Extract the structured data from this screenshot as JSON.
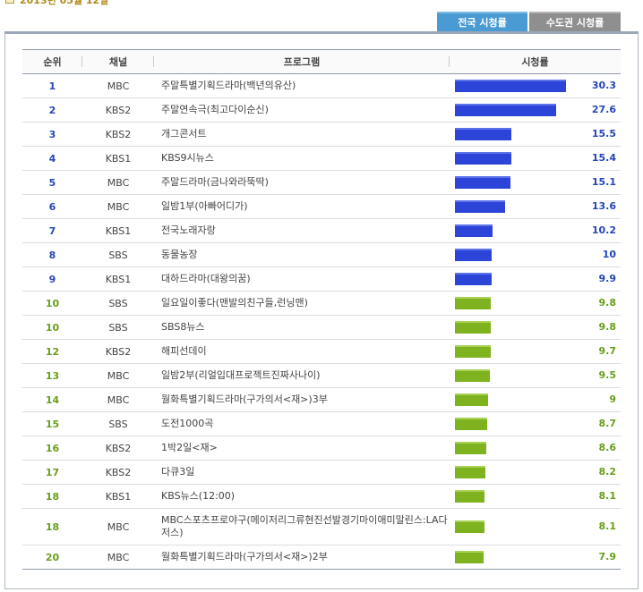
{
  "header": {
    "date": "2013년 05월 12일",
    "tabs": [
      {
        "label": "전국 시청률",
        "active": true
      },
      {
        "label": "수도권 시청률",
        "active": false
      }
    ]
  },
  "table": {
    "columns": [
      "순위",
      "채널",
      "프로그램",
      "시청률"
    ],
    "max_rating": 30.3,
    "rows": [
      {
        "rank": "1",
        "channel": "MBC",
        "program": "주말특별기획드라마(백년의유산)",
        "rating": 30.3,
        "rating_label": "30.3"
      },
      {
        "rank": "2",
        "channel": "KBS2",
        "program": "주말연속극(최고다이순신)",
        "rating": 27.6,
        "rating_label": "27.6"
      },
      {
        "rank": "3",
        "channel": "KBS2",
        "program": "개그콘서트",
        "rating": 15.5,
        "rating_label": "15.5"
      },
      {
        "rank": "4",
        "channel": "KBS1",
        "program": "KBS9시뉴스",
        "rating": 15.4,
        "rating_label": "15.4"
      },
      {
        "rank": "5",
        "channel": "MBC",
        "program": "주말드라마(금나와라뚝딱)",
        "rating": 15.1,
        "rating_label": "15.1"
      },
      {
        "rank": "6",
        "channel": "MBC",
        "program": "일밤1부(아빠어디가)",
        "rating": 13.6,
        "rating_label": "13.6"
      },
      {
        "rank": "7",
        "channel": "KBS1",
        "program": "전국노래자랑",
        "rating": 10.2,
        "rating_label": "10.2"
      },
      {
        "rank": "8",
        "channel": "SBS",
        "program": "동물농장",
        "rating": 10,
        "rating_label": "10"
      },
      {
        "rank": "9",
        "channel": "KBS1",
        "program": "대하드라마(대왕의꿈)",
        "rating": 9.9,
        "rating_label": "9.9"
      },
      {
        "rank": "10",
        "channel": "SBS",
        "program": "일요일이좋다(맨발의친구들,런닝맨)",
        "rating": 9.8,
        "rating_label": "9.8"
      },
      {
        "rank": "10",
        "channel": "SBS",
        "program": "SBS8뉴스",
        "rating": 9.8,
        "rating_label": "9.8"
      },
      {
        "rank": "12",
        "channel": "KBS2",
        "program": "해피선데이",
        "rating": 9.7,
        "rating_label": "9.7"
      },
      {
        "rank": "13",
        "channel": "MBC",
        "program": "일밤2부(리얼입대프로젝트진짜사나이)",
        "rating": 9.5,
        "rating_label": "9.5"
      },
      {
        "rank": "14",
        "channel": "MBC",
        "program": "월화특별기획드라마(구가의서<재>)3부",
        "rating": 9,
        "rating_label": "9"
      },
      {
        "rank": "15",
        "channel": "SBS",
        "program": "도전1000곡",
        "rating": 8.7,
        "rating_label": "8.7"
      },
      {
        "rank": "16",
        "channel": "KBS2",
        "program": "1박2일<재>",
        "rating": 8.6,
        "rating_label": "8.6"
      },
      {
        "rank": "17",
        "channel": "KBS2",
        "program": "다큐3일",
        "rating": 8.2,
        "rating_label": "8.2"
      },
      {
        "rank": "18",
        "channel": "KBS1",
        "program": "KBS뉴스(12:00)",
        "rating": 8.1,
        "rating_label": "8.1"
      },
      {
        "rank": "18",
        "channel": "MBC",
        "program": "MBC스포츠프로야구(메이저리그류현진선발경기마이애미말린스:LA다저스)",
        "rating": 8.1,
        "rating_label": "8.1"
      },
      {
        "rank": "20",
        "channel": "MBC",
        "program": "월화특별기획드라마(구가의서<재>)2부",
        "rating": 7.9,
        "rating_label": "7.9"
      }
    ]
  },
  "colors": {
    "top_bar": "#2d44d9",
    "low_bar": "#7fb21f",
    "tab_active": "#4a9ad3",
    "tab_inactive": "#8f8f8f"
  }
}
